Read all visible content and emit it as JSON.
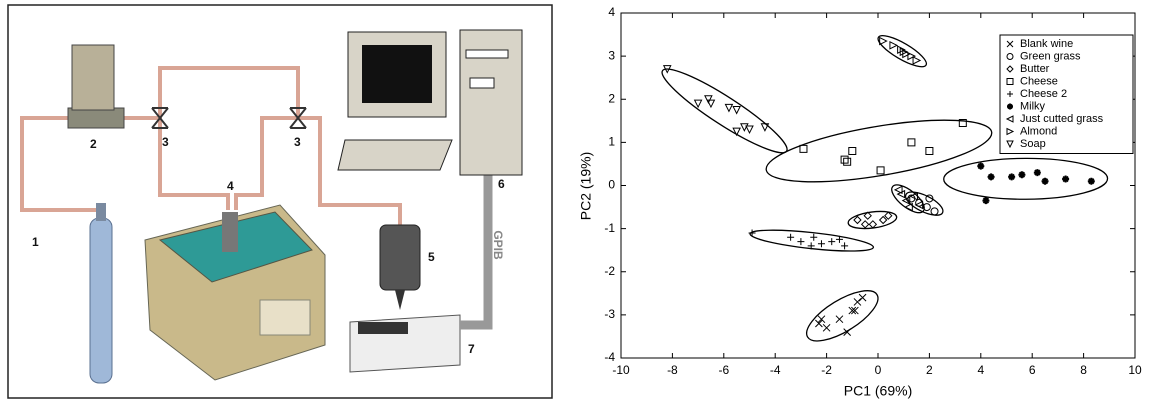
{
  "diagram": {
    "labels": [
      "1",
      "2",
      "3",
      "3",
      "4",
      "5",
      "6",
      "7"
    ],
    "bus_label": "GPIB"
  },
  "chart_data": {
    "type": "scatter",
    "xlabel": "PC1 (69%)",
    "ylabel": "PC2 (19%)",
    "xlim": [
      -10,
      10
    ],
    "ylim": [
      -4,
      4
    ],
    "xticks": [
      -10,
      -8,
      -6,
      -4,
      -2,
      0,
      2,
      4,
      6,
      8,
      10
    ],
    "yticks": [
      -4,
      -3,
      -2,
      -1,
      0,
      1,
      2,
      3,
      4
    ],
    "legend": "upper right",
    "color": "#000000",
    "series": [
      {
        "name": "Blank wine",
        "marker": "x",
        "x": [
          -2.3,
          -2.0,
          -2.2,
          -1.5,
          -1.0,
          -0.8,
          -0.6,
          -1.2,
          -0.9
        ],
        "y": [
          -3.2,
          -3.3,
          -3.1,
          -3.1,
          -2.9,
          -2.7,
          -2.6,
          -3.4,
          -2.9
        ]
      },
      {
        "name": "Green grass",
        "marker": "circle",
        "x": [
          1.6,
          1.9,
          2.2,
          1.3,
          2.0
        ],
        "y": [
          -0.4,
          -0.5,
          -0.6,
          -0.3,
          -0.3
        ]
      },
      {
        "name": "Butter",
        "marker": "diamond",
        "x": [
          -0.8,
          -0.4,
          -0.2,
          0.2,
          0.4,
          -0.5
        ],
        "y": [
          -0.8,
          -0.7,
          -0.9,
          -0.8,
          -0.7,
          -0.9
        ]
      },
      {
        "name": "Cheese",
        "marker": "square",
        "x": [
          -2.9,
          -1.3,
          -1.2,
          -1.0,
          0.1,
          1.3,
          2.0,
          3.3
        ],
        "y": [
          0.85,
          0.6,
          0.55,
          0.8,
          0.35,
          1.0,
          0.8,
          1.45
        ]
      },
      {
        "name": "Cheese 2",
        "marker": "plus",
        "x": [
          -4.9,
          -3.4,
          -3.0,
          -2.5,
          -2.2,
          -1.8,
          -1.5,
          -1.3,
          -2.6
        ],
        "y": [
          -1.1,
          -1.2,
          -1.3,
          -1.2,
          -1.35,
          -1.3,
          -1.25,
          -1.4,
          -1.4
        ]
      },
      {
        "name": "Milky",
        "marker": "star",
        "x": [
          4.0,
          4.2,
          4.4,
          5.2,
          5.6,
          6.2,
          6.5,
          7.3,
          8.3
        ],
        "y": [
          0.45,
          -0.35,
          0.2,
          0.2,
          0.25,
          0.3,
          0.1,
          0.15,
          0.1
        ]
      },
      {
        "name": "Just cutted grass",
        "marker": "tri-left",
        "x": [
          0.9,
          1.1,
          1.4,
          1.6,
          1.2,
          0.8
        ],
        "y": [
          -0.2,
          -0.35,
          -0.25,
          -0.45,
          -0.5,
          -0.1
        ]
      },
      {
        "name": "Almond",
        "marker": "tri-right",
        "x": [
          0.2,
          0.6,
          0.9,
          1.1,
          1.3,
          1.5,
          1.0
        ],
        "y": [
          3.35,
          3.25,
          3.15,
          3.05,
          3.0,
          2.9,
          3.1
        ]
      },
      {
        "name": "Soap",
        "marker": "tri-down",
        "x": [
          -8.2,
          -7.0,
          -6.5,
          -5.8,
          -6.6,
          -5.5,
          -5.2,
          -5.0,
          -4.4,
          -5.5
        ],
        "y": [
          2.7,
          1.9,
          1.9,
          1.8,
          2.0,
          1.75,
          1.35,
          1.3,
          1.35,
          1.25
        ]
      }
    ]
  }
}
